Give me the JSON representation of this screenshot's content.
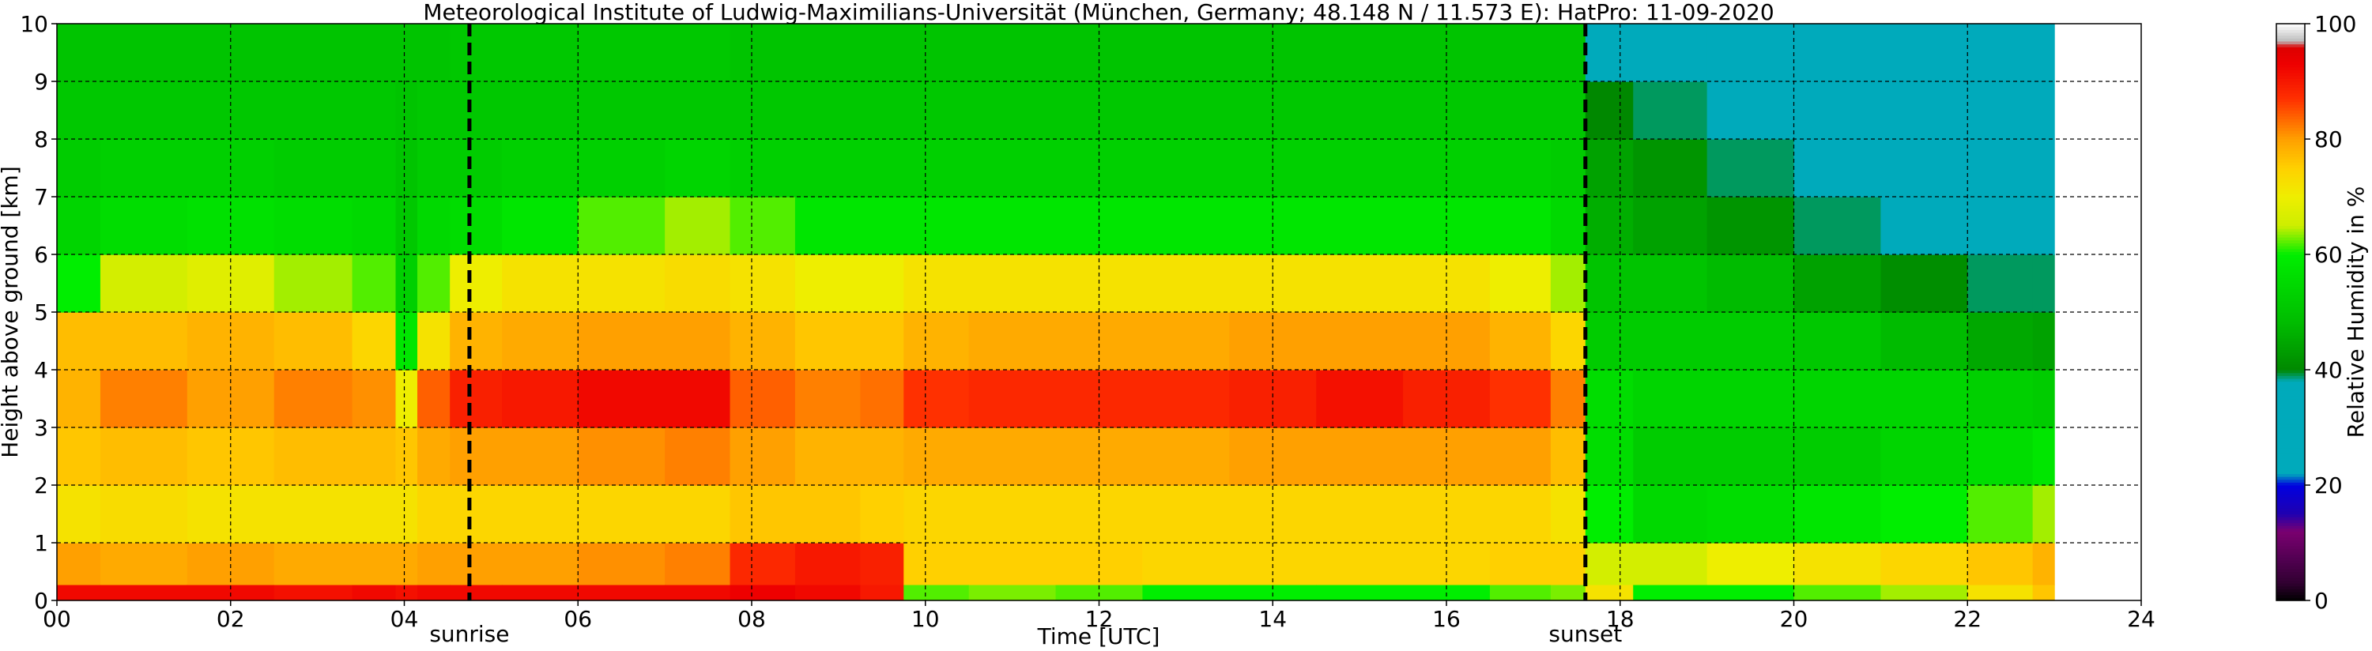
{
  "chart_data": {
    "type": "heatmap",
    "title": "Meteorological Institute of Ludwig-Maximilians-Universität (München, Germany; 48.148 N / 11.573 E):    HatPro: 11-09-2020",
    "xlabel": "Time [UTC]",
    "ylabel": "Height above ground [km]",
    "xlim": [
      0,
      24
    ],
    "ylim": [
      0,
      10
    ],
    "x_ticks": [
      "00",
      "02",
      "04",
      "06",
      "08",
      "10",
      "12",
      "14",
      "16",
      "18",
      "20",
      "22",
      "24"
    ],
    "y_ticks": [
      "0",
      "1",
      "2",
      "3",
      "4",
      "5",
      "6",
      "7",
      "8",
      "9",
      "10"
    ],
    "data_end_hour": 23.0,
    "grid": true,
    "events": [
      {
        "label": "sunrise",
        "x": 4.75
      },
      {
        "label": "sunset",
        "x": 17.6
      }
    ],
    "colorbar": {
      "label": "Relative Humidity in %",
      "ticks": [
        "0",
        "20",
        "40",
        "60",
        "80",
        "100"
      ],
      "range": [
        0,
        100
      ],
      "color_stops": [
        [
          0,
          "#000000"
        ],
        [
          3,
          "#300030"
        ],
        [
          7,
          "#500050"
        ],
        [
          12,
          "#7a0070"
        ],
        [
          15,
          "#2000b0"
        ],
        [
          20,
          "#0000e0"
        ],
        [
          22,
          "#00aabb"
        ],
        [
          38,
          "#00aabb"
        ],
        [
          40,
          "#008800"
        ],
        [
          48,
          "#00bb00"
        ],
        [
          56,
          "#00dd00"
        ],
        [
          60,
          "#00ee00"
        ],
        [
          65,
          "#ccee00"
        ],
        [
          70,
          "#eeee00"
        ],
        [
          75,
          "#ffd000"
        ],
        [
          80,
          "#ffa000"
        ],
        [
          87,
          "#ff3000"
        ],
        [
          93,
          "#ee0000"
        ],
        [
          96,
          "#dd0000"
        ],
        [
          97,
          "#bbbbbb"
        ],
        [
          100,
          "#ffffff"
        ]
      ]
    },
    "time_hours": [
      0,
      1,
      2,
      3,
      3.8,
      4.0,
      4.3,
      4.75,
      5.5,
      6.5,
      7.5,
      8.0,
      9.0,
      9.5,
      10,
      11,
      12,
      13,
      14,
      15,
      16,
      17,
      17.4,
      17.8,
      18.5,
      19.5,
      20.5,
      21.5,
      22.5,
      23.0
    ],
    "heights_km": [
      0.05,
      0.5,
      1.5,
      2.5,
      3.5,
      4.5,
      5.5,
      6.5,
      7.5,
      8.5,
      9.5
    ],
    "rh_percent": [
      [
        92,
        80,
        72,
        76,
        78,
        77,
        60,
        54,
        52,
        51,
        50
      ],
      [
        92,
        79,
        73,
        77,
        82,
        77,
        66,
        56,
        53,
        51,
        50
      ],
      [
        92,
        80,
        72,
        76,
        80,
        78,
        68,
        57,
        53,
        51,
        50
      ],
      [
        91,
        79,
        72,
        77,
        82,
        77,
        64,
        56,
        52,
        51,
        50
      ],
      [
        92,
        79,
        72,
        77,
        81,
        74,
        62,
        55,
        52,
        51,
        50
      ],
      [
        91,
        79,
        72,
        76,
        70,
        58,
        53,
        51,
        50,
        50,
        50
      ],
      [
        92,
        80,
        74,
        79,
        84,
        72,
        62,
        55,
        52,
        51,
        50
      ],
      [
        92,
        80,
        74,
        80,
        89,
        78,
        70,
        56,
        52,
        51,
        51
      ],
      [
        92,
        80,
        74,
        80,
        90,
        79,
        72,
        58,
        53,
        51,
        51
      ],
      [
        92,
        81,
        74,
        81,
        92,
        80,
        72,
        62,
        53,
        51,
        51
      ],
      [
        92,
        82,
        74,
        82,
        92,
        80,
        73,
        64,
        54,
        51,
        51
      ],
      [
        93,
        88,
        76,
        80,
        84,
        78,
        72,
        62,
        53,
        51,
        50
      ],
      [
        92,
        90,
        76,
        78,
        82,
        76,
        70,
        58,
        53,
        51,
        50
      ],
      [
        90,
        89,
        75,
        78,
        83,
        76,
        70,
        58,
        53,
        51,
        50
      ],
      [
        62,
        75,
        74,
        79,
        87,
        78,
        72,
        58,
        53,
        51,
        50
      ],
      [
        63,
        75,
        74,
        79,
        88,
        79,
        72,
        58,
        53,
        51,
        50
      ],
      [
        62,
        75,
        74,
        79,
        88,
        79,
        72,
        58,
        53,
        51,
        50
      ],
      [
        60,
        74,
        74,
        79,
        88,
        79,
        72,
        58,
        53,
        51,
        50
      ],
      [
        60,
        74,
        74,
        80,
        89,
        80,
        72,
        58,
        53,
        51,
        50
      ],
      [
        60,
        74,
        74,
        80,
        91,
        80,
        72,
        58,
        53,
        51,
        50
      ],
      [
        60,
        74,
        74,
        80,
        89,
        80,
        72,
        58,
        53,
        51,
        50
      ],
      [
        62,
        75,
        74,
        80,
        87,
        78,
        70,
        58,
        53,
        51,
        50
      ],
      [
        63,
        75,
        72,
        77,
        82,
        74,
        64,
        55,
        52,
        51,
        50
      ],
      [
        72,
        66,
        60,
        56,
        56,
        52,
        50,
        46,
        44,
        40,
        38
      ],
      [
        60,
        66,
        55,
        52,
        54,
        52,
        50,
        44,
        42,
        39,
        38
      ],
      [
        60,
        70,
        56,
        52,
        54,
        52,
        48,
        42,
        39,
        38,
        38
      ],
      [
        62,
        72,
        58,
        52,
        54,
        51,
        44,
        39,
        38,
        38,
        38
      ],
      [
        64,
        74,
        60,
        54,
        54,
        48,
        41,
        38,
        38,
        38,
        38
      ],
      [
        72,
        76,
        62,
        56,
        53,
        45,
        39,
        38,
        38,
        38,
        38
      ],
      [
        76,
        78,
        64,
        58,
        52,
        44,
        39,
        38,
        38,
        38,
        38
      ]
    ]
  }
}
